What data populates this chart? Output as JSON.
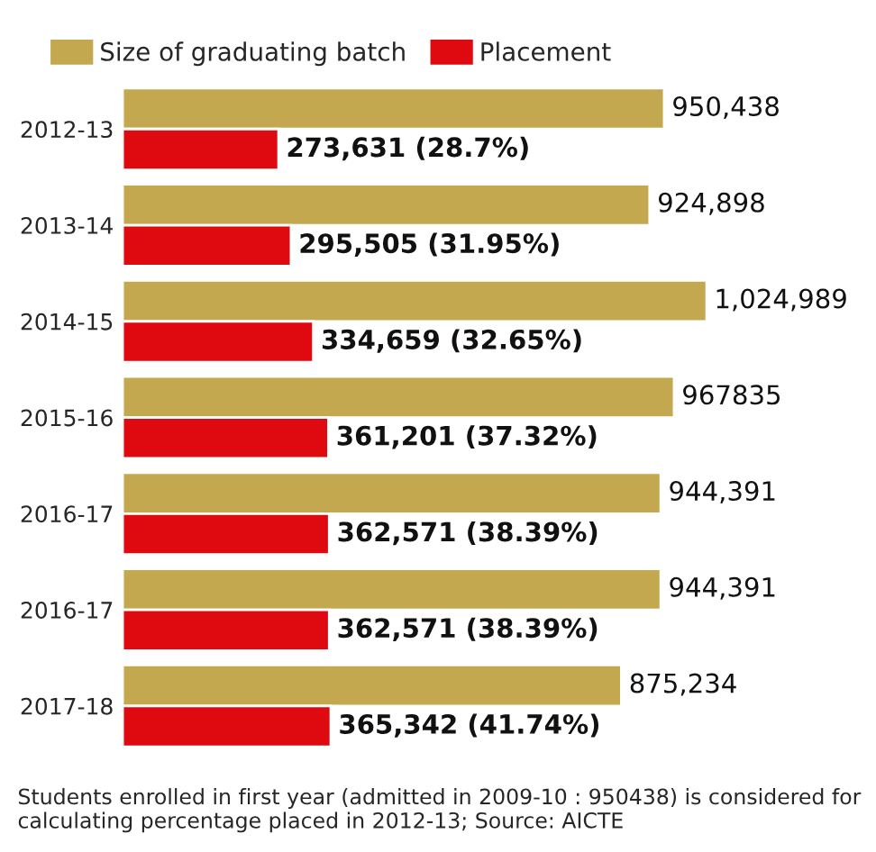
{
  "chart_data": {
    "type": "bar",
    "orientation": "horizontal",
    "categories": [
      "2012-13",
      "2013-14",
      "2014-15",
      "2015-16",
      "2016-17",
      "2016-17",
      "2017-18"
    ],
    "series": [
      {
        "name": "Size of graduating batch",
        "color": "#c4a850",
        "values": [
          950438,
          924898,
          1024989,
          967835,
          944391,
          944391,
          875234
        ],
        "value_labels": [
          "950,438",
          "924,898",
          "1,024,989",
          "967835",
          "944,391",
          "944,391",
          "875,234"
        ]
      },
      {
        "name": "Placement",
        "color": "#df0a10",
        "values": [
          273631,
          295505,
          334659,
          361201,
          362571,
          362571,
          365342
        ],
        "value_labels": [
          "273,631 (28.7%)",
          "295,505 (31.95%)",
          "334,659 (32.65%)",
          "361,201 (37.32%)",
          "362,571 (38.39%)",
          "362,571 (38.39%)",
          "365,342 (41.74%)"
        ]
      }
    ],
    "tick_labels": "y",
    "legend": "top left",
    "grid": false,
    "annotations": [
      "Students enrolled in first year (admitted in 2009-10 : 950438) is considered for calculating percentage placed in 2012-13; Source: AICTE"
    ]
  }
}
